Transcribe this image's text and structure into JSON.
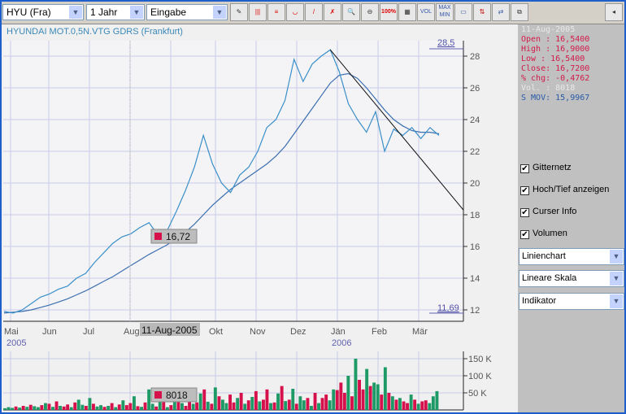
{
  "toolbar": {
    "symbol": "HYU (Fra)",
    "period": "1 Jahr",
    "input": "Eingabe",
    "zoom100": "100%",
    "vol": "VOL",
    "maxmin": "MAX MIN"
  },
  "title": "HYUNDAI MOT.0,5N.VTG GDRS (Frankfurt)",
  "info": {
    "date": "11-Aug-2005",
    "open": "Open : 16,5400",
    "high": "High : 16,9000",
    "low": "Low  : 16,5400",
    "close": "Close: 16,7200",
    "chg": "% chg: -0,4762",
    "vol": "Vol. : 8018",
    "smov": "S MOV: 15,9967"
  },
  "options": {
    "grid": "Gitternetz",
    "hilo": "Hoch/Tief anzeigen",
    "cursor": "Curser Info",
    "volume": "Volumen",
    "charttype": "Linienchart",
    "scale": "Lineare Skala",
    "indicator": "Indikator"
  },
  "cursor": {
    "price_label": "16,72",
    "date_label": "11-Aug-2005",
    "vol_label": "8018"
  },
  "colors": {
    "price": "#3a8fc8",
    "sma": "#3b6fb0",
    "up": "#1e9a66",
    "down": "#d6104a",
    "grid": "#c8cce8"
  },
  "chart_data": {
    "type": "line",
    "x_labels": [
      "Mai",
      "Jun",
      "Jul",
      "Aug",
      "Okt",
      "Nov",
      "Dez",
      "Jän",
      "Feb",
      "Mär"
    ],
    "year_labels": [
      "2005",
      "2006"
    ],
    "y_ticks": [
      12,
      14,
      16,
      18,
      20,
      22,
      24,
      26,
      28
    ],
    "high_label": "28,5",
    "low_label": "11,69",
    "ylim": [
      11.5,
      29
    ],
    "price": [
      11.9,
      11.8,
      12.0,
      12.4,
      12.8,
      13.0,
      13.3,
      13.5,
      14.0,
      14.3,
      15.0,
      15.6,
      16.2,
      16.6,
      16.8,
      17.2,
      17.5,
      16.7,
      17.0,
      18.2,
      19.5,
      21.0,
      23.0,
      21.2,
      20.0,
      19.4,
      20.5,
      21.0,
      22.0,
      23.5,
      24.0,
      25.2,
      27.8,
      26.4,
      27.5,
      28.0,
      28.4,
      27.0,
      25.0,
      24.0,
      23.2,
      24.5,
      22.0,
      23.4,
      23.0,
      23.5,
      22.8,
      23.5,
      23.0
    ],
    "sma": [
      11.8,
      11.85,
      11.9,
      12.0,
      12.15,
      12.3,
      12.5,
      12.7,
      12.95,
      13.2,
      13.5,
      13.8,
      14.1,
      14.45,
      14.8,
      15.15,
      15.5,
      15.8,
      16.1,
      16.5,
      16.9,
      17.4,
      18.0,
      18.6,
      19.1,
      19.6,
      20.0,
      20.4,
      20.8,
      21.2,
      21.7,
      22.3,
      23.1,
      23.9,
      24.7,
      25.5,
      26.3,
      26.8,
      26.9,
      26.6,
      26.0,
      25.3,
      24.6,
      24.0,
      23.6,
      23.3,
      23.2,
      23.2,
      23.1
    ],
    "trendline": [
      {
        "i": 36,
        "v": 28.4
      },
      {
        "i": "end",
        "v": 18.3
      }
    ],
    "volume_ticks": [
      "150 K",
      "100 K",
      "50 K"
    ],
    "volume": [
      5,
      8,
      6,
      10,
      7,
      12,
      9,
      15,
      11,
      8,
      14,
      20,
      18,
      9,
      25,
      12,
      10,
      16,
      8,
      22,
      30,
      15,
      12,
      35,
      18,
      10,
      14,
      9,
      12,
      20,
      8,
      16,
      28,
      14,
      20,
      40,
      11,
      9,
      22,
      60,
      18,
      10,
      25,
      45,
      8,
      14,
      30,
      42,
      20,
      12,
      35,
      18,
      22,
      48,
      60,
      24,
      18,
      66,
      40,
      30,
      20,
      45,
      22,
      35,
      50,
      18,
      28,
      38,
      55,
      25,
      30,
      60,
      20,
      22,
      48,
      70,
      26,
      30,
      62,
      18,
      40,
      28,
      35,
      12,
      50,
      20,
      35,
      45,
      28,
      60,
      58,
      80,
      50,
      100,
      40,
      150,
      88,
      60,
      120,
      70,
      80,
      75,
      45,
      125,
      50,
      40,
      30,
      35,
      25,
      20,
      45,
      30,
      18,
      25,
      28,
      20,
      40,
      55
    ],
    "volume_colors": "gggrgrgrggrgrgrgrrgrggrgrggrgrgrgrrgrgrggrgrgrgrgrrgrgrgrgrggrrgrgrgrgrrgrgrgrgrggrgrgrrggrrrgrgrrgrggrgrgrgrrgrgrr"
  }
}
